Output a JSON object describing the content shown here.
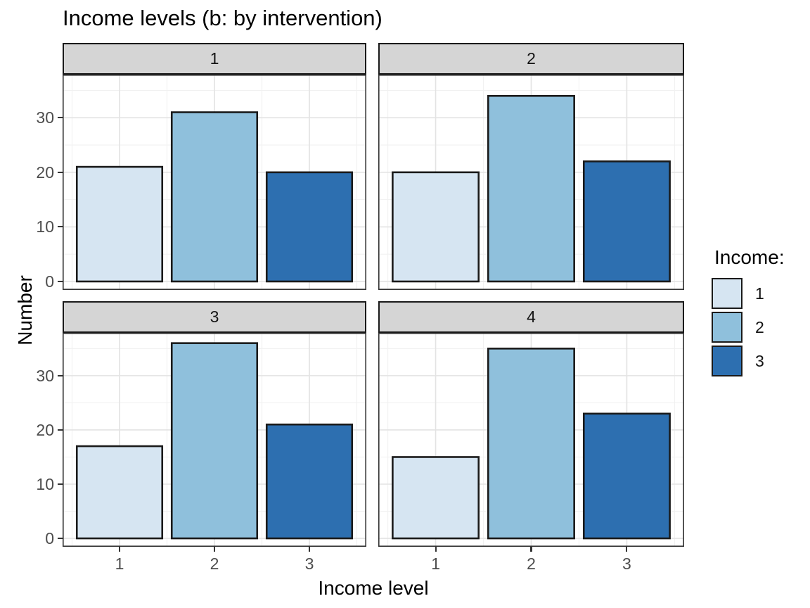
{
  "title": "Income levels (b: by intervention)",
  "axes": {
    "x": {
      "title": "Income level",
      "tick_labels": [
        "1",
        "2",
        "3"
      ]
    },
    "y": {
      "title": "Number",
      "tick_labels": [
        "0",
        "10",
        "20",
        "30"
      ]
    }
  },
  "legend": {
    "title": "Income:",
    "items": [
      {
        "label": "1",
        "color": "#D6E5F2"
      },
      {
        "label": "2",
        "color": "#8FC0DC"
      },
      {
        "label": "3",
        "color": "#2D6FB0"
      }
    ]
  },
  "chart_data": {
    "type": "bar",
    "title": "Income levels (b: by intervention)",
    "xlabel": "Income level",
    "ylabel": "Number",
    "categories": [
      "1",
      "2",
      "3"
    ],
    "facets": [
      {
        "label": "1",
        "values": [
          21,
          31,
          20
        ]
      },
      {
        "label": "2",
        "values": [
          20,
          34,
          22
        ]
      },
      {
        "label": "3",
        "values": [
          17,
          36,
          21
        ]
      },
      {
        "label": "4",
        "values": [
          15,
          35,
          23
        ]
      }
    ],
    "bar_colors": [
      "#D6E5F2",
      "#8FC0DC",
      "#2D6FB0"
    ],
    "bar_edge_color": "#1A1A1A",
    "ylim": [
      0,
      37.9
    ],
    "y_major_ticks": [
      0,
      10,
      20,
      30
    ],
    "y_minor_gridlines": [
      5,
      15,
      25,
      35
    ],
    "grid": true,
    "legend_position": "right",
    "legend_title": "Income:",
    "strip_fill": "#D5D5D5",
    "panel_border_color": "#333333",
    "major_grid_color": "#E3E3E3",
    "minor_grid_color": "#F1F1F1"
  }
}
